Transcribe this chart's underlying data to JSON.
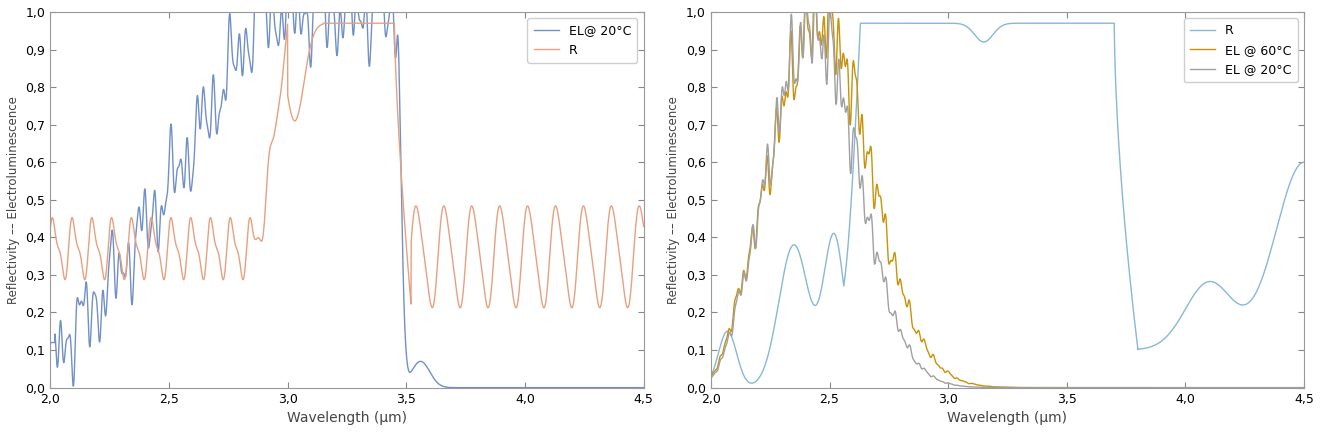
{
  "xlim": [
    2.0,
    4.5
  ],
  "ylim": [
    0.0,
    1.0
  ],
  "xlabel": "Wavelength (μm)",
  "ylabel": "Reflectivity –– Electroluminescence",
  "yticks": [
    0.0,
    0.1,
    0.2,
    0.3,
    0.4,
    0.5,
    0.6,
    0.7,
    0.8,
    0.9,
    1.0
  ],
  "xticks": [
    2.0,
    2.5,
    3.0,
    3.5,
    4.0,
    4.5
  ],
  "color_R_left": "#E8A080",
  "color_EL_20_left": "#7090C8",
  "color_R_right": "#88B8D8",
  "color_EL_20_right": "#A0A0A0",
  "color_EL_60_right": "#C8920A",
  "legend_left": [
    "R",
    "EL@ 20°C"
  ],
  "legend_right": [
    "R",
    "EL @ 20°C",
    "EL @ 60°C"
  ],
  "bg_color": "#FFFFFF"
}
